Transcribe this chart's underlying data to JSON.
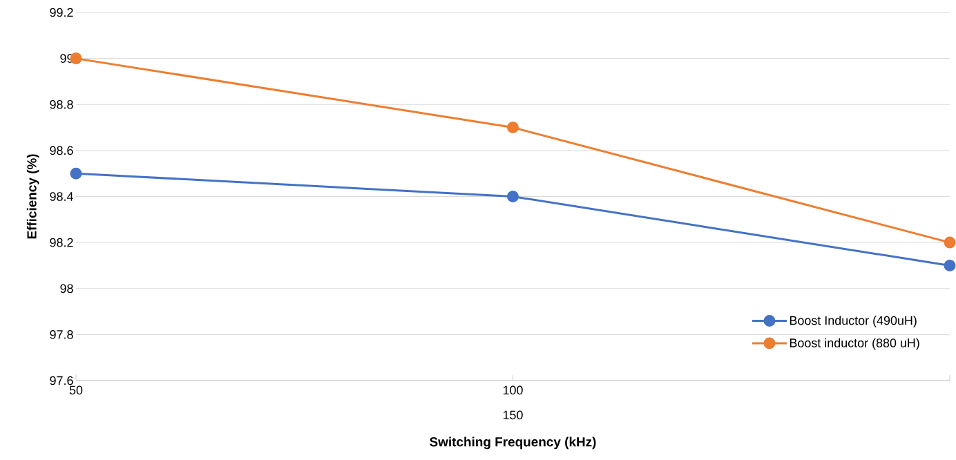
{
  "chart_data": {
    "type": "line",
    "xlabel": "Switching Frequency (kHz)",
    "ylabel": "Efficiency (%)",
    "categories": [
      "50",
      "100",
      null
    ],
    "series": [
      {
        "name": "Boost Inductor (490uH)",
        "color": "#4472c4",
        "values": [
          98.5,
          98.4,
          98.1
        ]
      },
      {
        "name": "Boost inductor (880 uH)",
        "color": "#ed7d31",
        "values": [
          99,
          98.7,
          98.2
        ]
      }
    ],
    "ylim": [
      97.6,
      99.2
    ],
    "yticks": [
      97.6,
      97.8,
      98,
      98.2,
      98.4,
      98.6,
      98.8,
      99,
      99.2
    ],
    "grid": "y",
    "legend": "bottom right",
    "marker": "circle",
    "line_style": "solid",
    "annotations": [
      "150"
    ]
  }
}
